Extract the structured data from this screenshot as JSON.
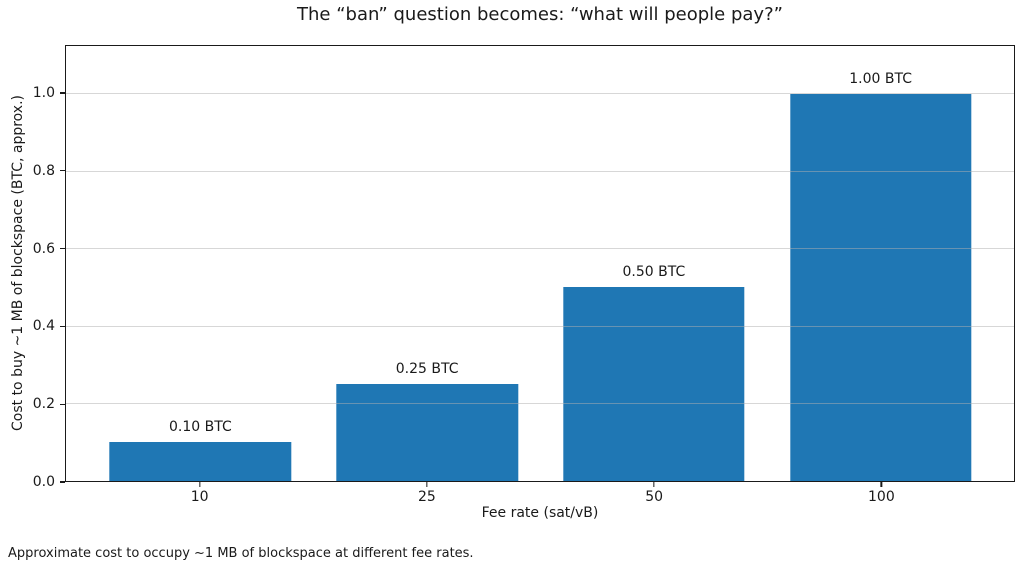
{
  "page": {
    "caption": "Approximate cost to occupy ~1 MB of blockspace at different fee rates."
  },
  "chart_data": {
    "type": "bar",
    "title": "The “ban” question becomes: “what will people pay?”",
    "categories": [
      "10",
      "25",
      "50",
      "100"
    ],
    "values": [
      0.1,
      0.25,
      0.5,
      1.0
    ],
    "bar_labels": [
      "0.10 BTC",
      "0.25 BTC",
      "0.50 BTC",
      "1.00 BTC"
    ],
    "xlabel": "Fee rate (sat/vB)",
    "ylabel": "Cost to buy ~1 MB of blockspace (BTC, approx.)",
    "ylim": [
      0,
      1.123
    ],
    "yticks": [
      0,
      0.2,
      0.4,
      0.6,
      0.8,
      1.0
    ],
    "ytick_labels": [
      "0.0",
      "0.2",
      "0.4",
      "0.6",
      "0.8",
      "1.0"
    ],
    "grid": "y",
    "grid_color": "#b0b0b0",
    "bar_color": "#1f77b4",
    "spine_color": "#1a1a1a",
    "legend": null
  }
}
